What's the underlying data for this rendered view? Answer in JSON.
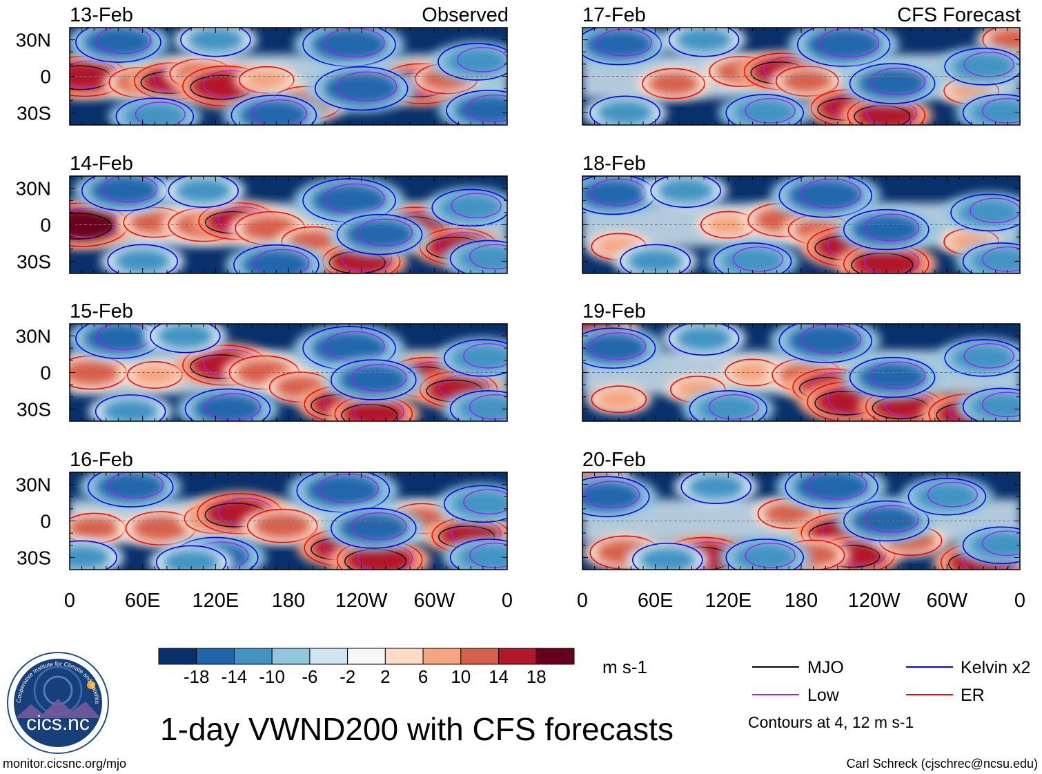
{
  "chart_data": {
    "type": "heatmap",
    "title": "1-day VWND200 with CFS forecasts",
    "variable": "VWND200",
    "units": "m s-1",
    "column_headers": {
      "left": "Observed",
      "right": "CFS Forecast"
    },
    "x_ticks": [
      "0",
      "60E",
      "120E",
      "180",
      "120W",
      "60W",
      "0"
    ],
    "y_ticks": [
      "30N",
      "0",
      "30S"
    ],
    "lat_range": [
      -40,
      40
    ],
    "lon_range": [
      0,
      360
    ],
    "colorbar": {
      "labels": [
        "-18",
        "-14",
        "-10",
        "-6",
        "-2",
        "2",
        "6",
        "10",
        "14",
        "18"
      ],
      "colors": [
        "#08306b",
        "#2166ac",
        "#4393c3",
        "#92c5de",
        "#d1e5f0",
        "#f7f7f7",
        "#fddbc7",
        "#f4a582",
        "#d6604d",
        "#b2182b",
        "#67001f"
      ]
    },
    "legend": [
      {
        "label": "MJO",
        "color": "#000000"
      },
      {
        "label": "Kelvin x2",
        "color": "#0000ff"
      },
      {
        "label": "Low",
        "color": "#a020f0"
      },
      {
        "label": "ER",
        "color": "#ff0000"
      }
    ],
    "contour_note": "Contours at 4, 12 m s-1",
    "panels": [
      {
        "date": "13-Feb",
        "kind": "Observed",
        "blobs": [
          {
            "lon": 12,
            "lat": 0,
            "v": 16
          },
          {
            "lon": 58,
            "lat": -5,
            "v": 10
          },
          {
            "lon": 85,
            "lat": -4,
            "v": 14
          },
          {
            "lon": 108,
            "lat": 2,
            "v": 10
          },
          {
            "lon": 128,
            "lat": -8,
            "v": 16
          },
          {
            "lon": 162,
            "lat": -3,
            "v": 8
          },
          {
            "lon": 195,
            "lat": -22,
            "v": 12
          },
          {
            "lon": 290,
            "lat": -6,
            "v": 16
          },
          {
            "lon": 310,
            "lat": -2,
            "v": 10
          },
          {
            "lon": 40,
            "lat": 28,
            "v": -16
          },
          {
            "lon": 230,
            "lat": 26,
            "v": -18
          },
          {
            "lon": 240,
            "lat": -10,
            "v": -18
          },
          {
            "lon": 168,
            "lat": -32,
            "v": -16
          },
          {
            "lon": 345,
            "lat": -28,
            "v": -16
          },
          {
            "lon": 335,
            "lat": 12,
            "v": -14
          },
          {
            "lon": 70,
            "lat": -33,
            "v": -14
          },
          {
            "lon": 120,
            "lat": 30,
            "v": -12
          }
        ]
      },
      {
        "date": "14-Feb",
        "kind": "Observed",
        "blobs": [
          {
            "lon": 10,
            "lat": 0,
            "v": 18
          },
          {
            "lon": 70,
            "lat": 2,
            "v": 10
          },
          {
            "lon": 110,
            "lat": 0,
            "v": 12
          },
          {
            "lon": 138,
            "lat": 3,
            "v": 14
          },
          {
            "lon": 165,
            "lat": -3,
            "v": 12
          },
          {
            "lon": 200,
            "lat": -14,
            "v": 10
          },
          {
            "lon": 240,
            "lat": -30,
            "v": 14
          },
          {
            "lon": 285,
            "lat": -2,
            "v": 16
          },
          {
            "lon": 320,
            "lat": -18,
            "v": 14
          },
          {
            "lon": 45,
            "lat": 28,
            "v": -16
          },
          {
            "lon": 230,
            "lat": 20,
            "v": -18
          },
          {
            "lon": 255,
            "lat": -8,
            "v": -16
          },
          {
            "lon": 170,
            "lat": -33,
            "v": -16
          },
          {
            "lon": 345,
            "lat": -28,
            "v": -14
          },
          {
            "lon": 330,
            "lat": 14,
            "v": -14
          },
          {
            "lon": 60,
            "lat": -30,
            "v": -12
          },
          {
            "lon": 110,
            "lat": 28,
            "v": -12
          }
        ]
      },
      {
        "date": "15-Feb",
        "kind": "Observed",
        "blobs": [
          {
            "lon": 18,
            "lat": 0,
            "v": 12
          },
          {
            "lon": 70,
            "lat": -2,
            "v": 8
          },
          {
            "lon": 128,
            "lat": 6,
            "v": 16
          },
          {
            "lon": 160,
            "lat": 0,
            "v": 12
          },
          {
            "lon": 190,
            "lat": -12,
            "v": 10
          },
          {
            "lon": 225,
            "lat": -26,
            "v": 14
          },
          {
            "lon": 250,
            "lat": -34,
            "v": 14
          },
          {
            "lon": 295,
            "lat": -4,
            "v": 16
          },
          {
            "lon": 320,
            "lat": -14,
            "v": 14
          },
          {
            "lon": 40,
            "lat": 28,
            "v": -16
          },
          {
            "lon": 230,
            "lat": 20,
            "v": -18
          },
          {
            "lon": 250,
            "lat": -6,
            "v": -16
          },
          {
            "lon": 130,
            "lat": -30,
            "v": -16
          },
          {
            "lon": 345,
            "lat": -30,
            "v": -14
          },
          {
            "lon": 340,
            "lat": 12,
            "v": -14
          },
          {
            "lon": 50,
            "lat": -32,
            "v": -12
          },
          {
            "lon": 95,
            "lat": 30,
            "v": -12
          }
        ]
      },
      {
        "date": "16-Feb",
        "kind": "Observed",
        "blobs": [
          {
            "lon": 20,
            "lat": -6,
            "v": 10
          },
          {
            "lon": 75,
            "lat": -6,
            "v": 12
          },
          {
            "lon": 120,
            "lat": 2,
            "v": 10
          },
          {
            "lon": 140,
            "lat": 6,
            "v": 16
          },
          {
            "lon": 175,
            "lat": -4,
            "v": 12
          },
          {
            "lon": 225,
            "lat": -22,
            "v": 14
          },
          {
            "lon": 255,
            "lat": -32,
            "v": 16
          },
          {
            "lon": 290,
            "lat": 2,
            "v": 10
          },
          {
            "lon": 330,
            "lat": -12,
            "v": 14
          },
          {
            "lon": 50,
            "lat": 28,
            "v": -16
          },
          {
            "lon": 225,
            "lat": 25,
            "v": -18
          },
          {
            "lon": 250,
            "lat": -6,
            "v": -16
          },
          {
            "lon": 120,
            "lat": -30,
            "v": -16
          },
          {
            "lon": 345,
            "lat": -30,
            "v": -14
          },
          {
            "lon": 340,
            "lat": 14,
            "v": -14
          },
          {
            "lon": 10,
            "lat": -30,
            "v": -12
          },
          {
            "lon": 100,
            "lat": -34,
            "v": -12
          }
        ]
      },
      {
        "date": "17-Feb",
        "kind": "CFS Forecast",
        "blobs": [
          {
            "lon": 75,
            "lat": -6,
            "v": 10
          },
          {
            "lon": 130,
            "lat": 4,
            "v": 10
          },
          {
            "lon": 165,
            "lat": 4,
            "v": 14
          },
          {
            "lon": 185,
            "lat": -4,
            "v": 10
          },
          {
            "lon": 220,
            "lat": -26,
            "v": 14
          },
          {
            "lon": 250,
            "lat": -32,
            "v": 14
          },
          {
            "lon": 320,
            "lat": -12,
            "v": 8
          },
          {
            "lon": 355,
            "lat": 30,
            "v": 10
          },
          {
            "lon": 30,
            "lat": 26,
            "v": -16
          },
          {
            "lon": 215,
            "lat": 26,
            "v": -18
          },
          {
            "lon": 255,
            "lat": -6,
            "v": -16
          },
          {
            "lon": 150,
            "lat": -30,
            "v": -14
          },
          {
            "lon": 345,
            "lat": -30,
            "v": -14
          },
          {
            "lon": 330,
            "lat": 8,
            "v": -14
          },
          {
            "lon": 35,
            "lat": -30,
            "v": -12
          },
          {
            "lon": 100,
            "lat": 30,
            "v": -12
          }
        ]
      },
      {
        "date": "18-Feb",
        "kind": "CFS Forecast",
        "blobs": [
          {
            "lon": 120,
            "lat": 0,
            "v": 8
          },
          {
            "lon": 165,
            "lat": 4,
            "v": 12
          },
          {
            "lon": 195,
            "lat": -4,
            "v": 10
          },
          {
            "lon": 220,
            "lat": -18,
            "v": 16
          },
          {
            "lon": 250,
            "lat": -32,
            "v": 16
          },
          {
            "lon": 30,
            "lat": -18,
            "v": 8
          },
          {
            "lon": 320,
            "lat": -14,
            "v": 8
          },
          {
            "lon": 25,
            "lat": 25,
            "v": -16
          },
          {
            "lon": 200,
            "lat": 24,
            "v": -18
          },
          {
            "lon": 250,
            "lat": -4,
            "v": -16
          },
          {
            "lon": 140,
            "lat": -30,
            "v": -14
          },
          {
            "lon": 345,
            "lat": -30,
            "v": -14
          },
          {
            "lon": 335,
            "lat": 10,
            "v": -14
          },
          {
            "lon": 60,
            "lat": -30,
            "v": -12
          },
          {
            "lon": 85,
            "lat": 28,
            "v": -12
          }
        ]
      },
      {
        "date": "19-Feb",
        "kind": "CFS Forecast",
        "blobs": [
          {
            "lon": 5,
            "lat": 34,
            "v": 16
          },
          {
            "lon": 140,
            "lat": 0,
            "v": 8
          },
          {
            "lon": 185,
            "lat": -2,
            "v": 12
          },
          {
            "lon": 205,
            "lat": -12,
            "v": 14
          },
          {
            "lon": 220,
            "lat": -24,
            "v": 16
          },
          {
            "lon": 265,
            "lat": -28,
            "v": 14
          },
          {
            "lon": 320,
            "lat": -34,
            "v": 16
          },
          {
            "lon": 95,
            "lat": -14,
            "v": 8
          },
          {
            "lon": 30,
            "lat": -22,
            "v": 8
          },
          {
            "lon": 25,
            "lat": 20,
            "v": -16
          },
          {
            "lon": 200,
            "lat": 26,
            "v": -18
          },
          {
            "lon": 255,
            "lat": -4,
            "v": -16
          },
          {
            "lon": 120,
            "lat": -30,
            "v": -14
          },
          {
            "lon": 345,
            "lat": -28,
            "v": -14
          },
          {
            "lon": 330,
            "lat": 12,
            "v": -14
          },
          {
            "lon": 100,
            "lat": 28,
            "v": -12
          }
        ]
      },
      {
        "date": "20-Feb",
        "kind": "CFS Forecast",
        "blobs": [
          {
            "lon": 5,
            "lat": 34,
            "v": 12
          },
          {
            "lon": 170,
            "lat": 6,
            "v": 10
          },
          {
            "lon": 215,
            "lat": -10,
            "v": 16
          },
          {
            "lon": 225,
            "lat": -28,
            "v": 14
          },
          {
            "lon": 100,
            "lat": -30,
            "v": 16
          },
          {
            "lon": 35,
            "lat": -26,
            "v": 12
          },
          {
            "lon": 190,
            "lat": -28,
            "v": 10
          },
          {
            "lon": 330,
            "lat": -34,
            "v": 16
          },
          {
            "lon": 270,
            "lat": -16,
            "v": 10
          },
          {
            "lon": 20,
            "lat": 20,
            "v": -16
          },
          {
            "lon": 205,
            "lat": 28,
            "v": -18
          },
          {
            "lon": 250,
            "lat": 0,
            "v": -16
          },
          {
            "lon": 150,
            "lat": -30,
            "v": -14
          },
          {
            "lon": 345,
            "lat": -20,
            "v": -14
          },
          {
            "lon": 300,
            "lat": 20,
            "v": -14
          },
          {
            "lon": 70,
            "lat": -32,
            "v": -12
          },
          {
            "lon": 110,
            "lat": 28,
            "v": -12
          }
        ]
      }
    ]
  },
  "logo": {
    "text": "cics.nc",
    "arc_text": "Cooperative Institute for Climate and Satellites"
  },
  "footer": {
    "left": "monitor.cicsnc.org/mjo",
    "right": "Carl Schreck (cjschrec@ncsu.edu)"
  }
}
